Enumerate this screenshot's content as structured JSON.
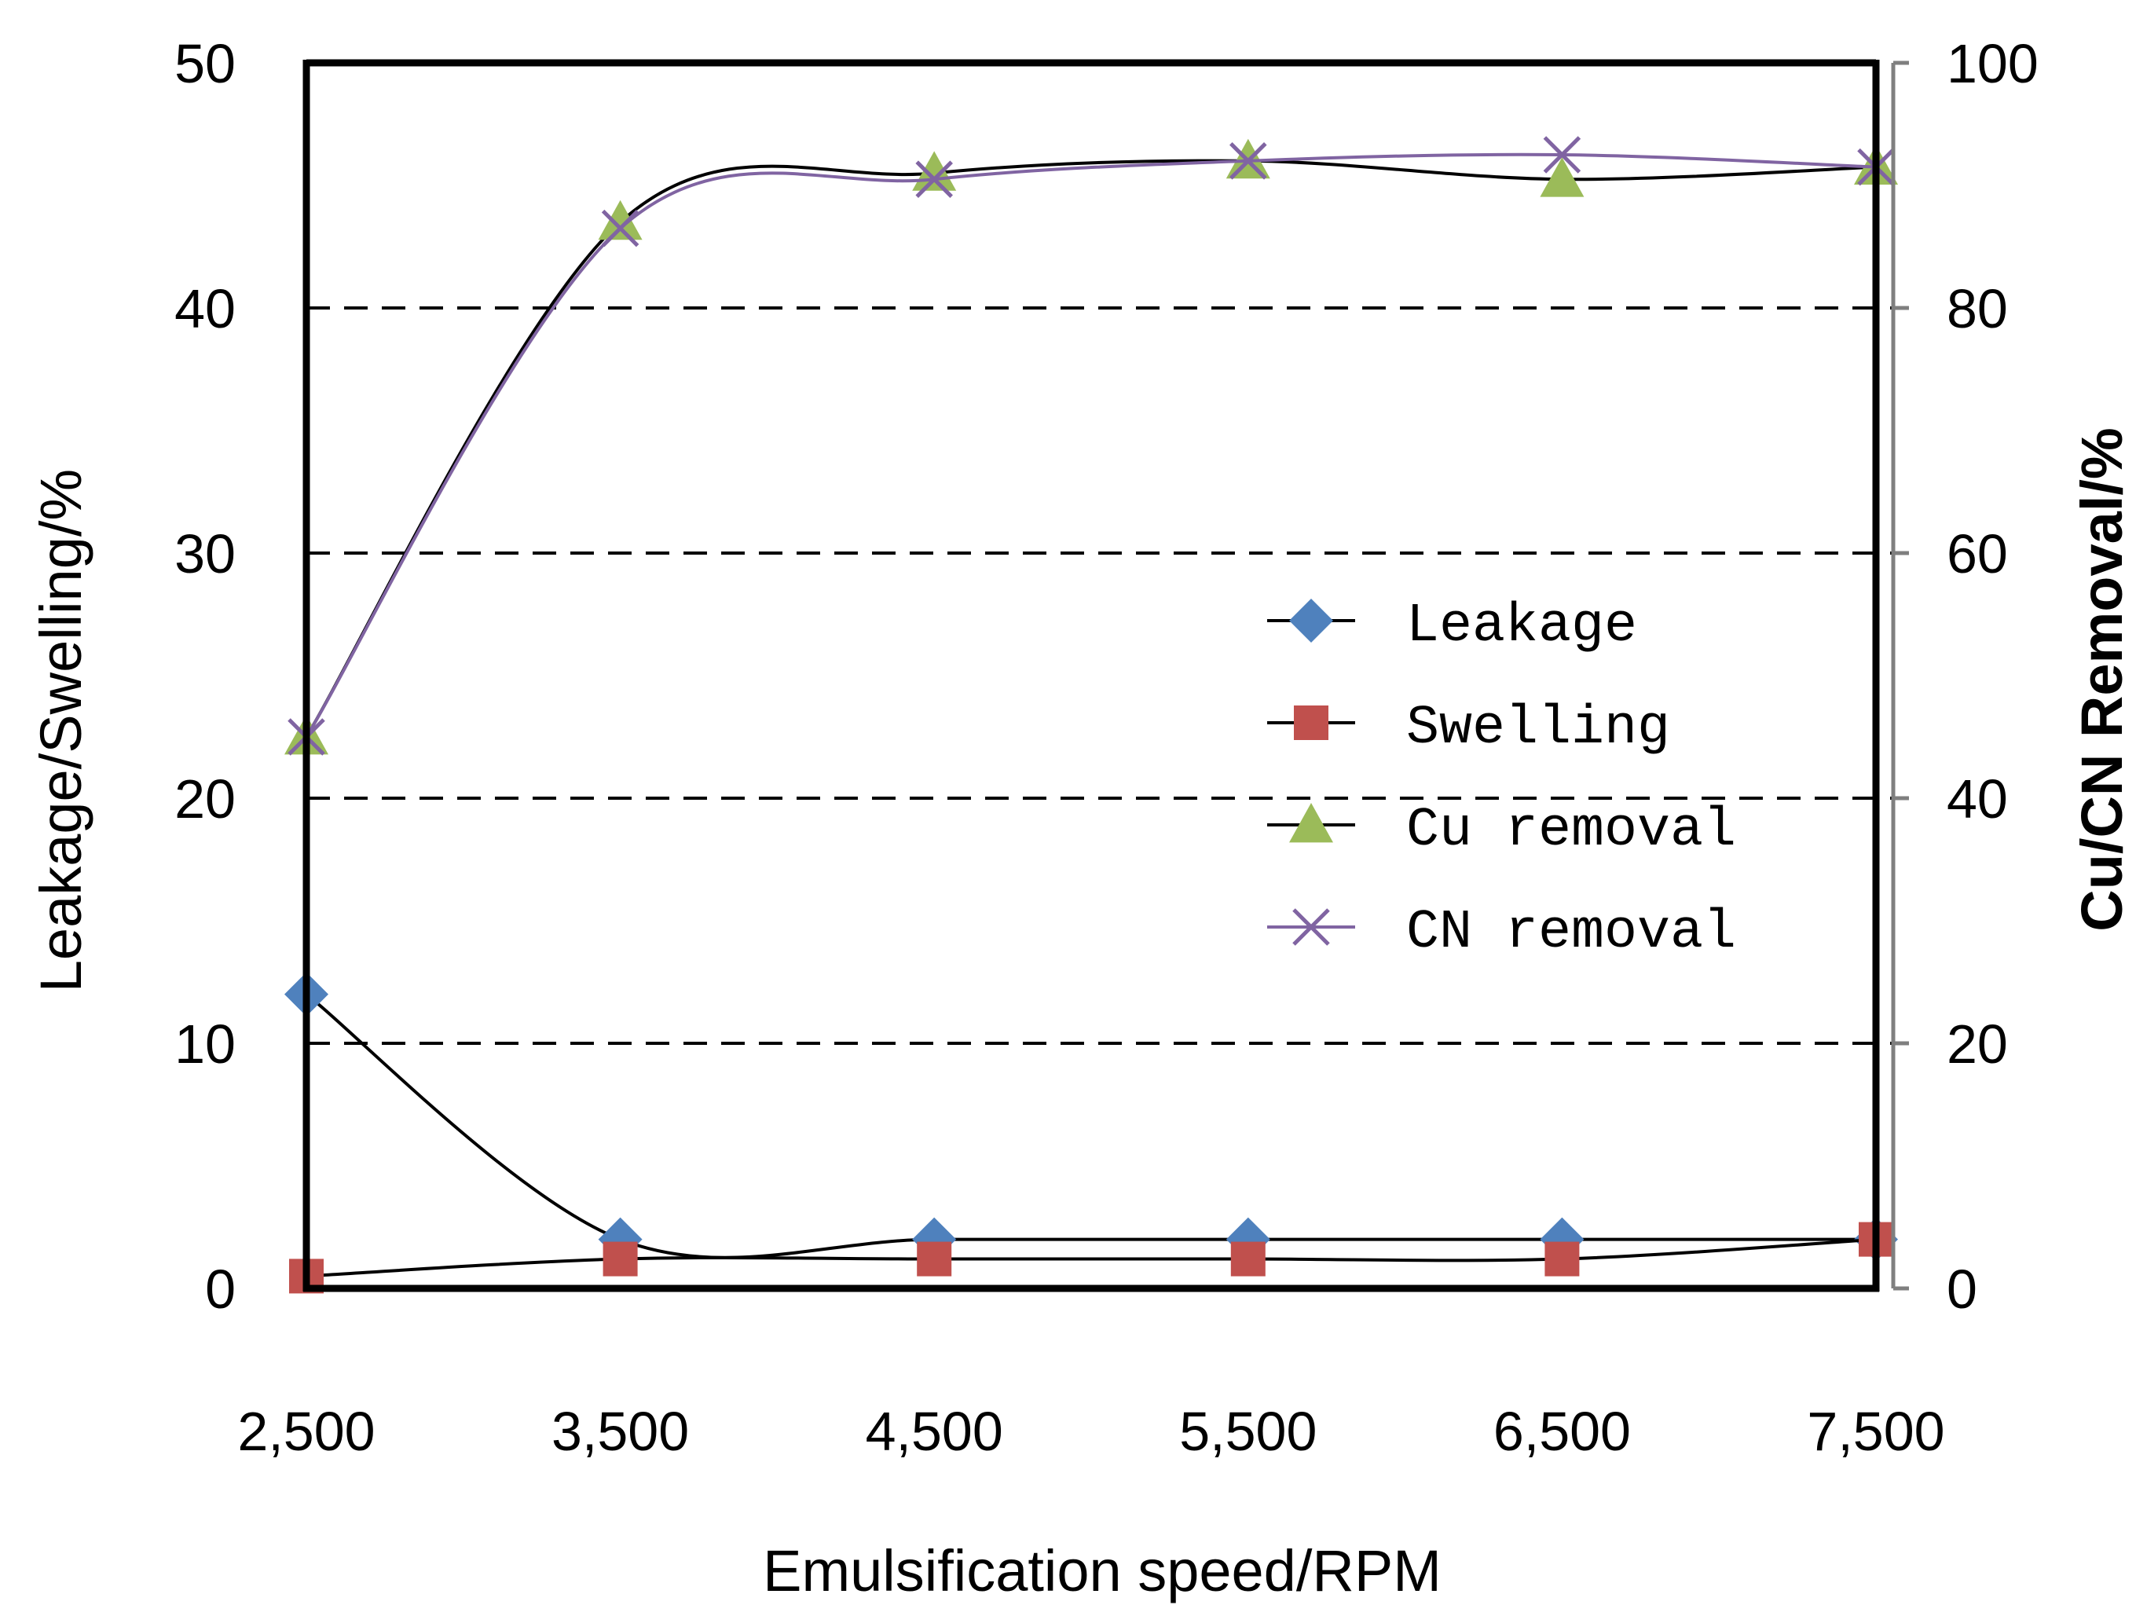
{
  "chart_data": {
    "type": "line",
    "title": "",
    "xlabel": "Emulsification speed/RPM",
    "ylabel_left": "Leakage/Swelling/%",
    "ylabel_right": "Cu/CN Removal/%",
    "categories": [
      "2,500",
      "3,500",
      "4,500",
      "5,500",
      "6,500",
      "7,500"
    ],
    "y_left_range": [
      0,
      50
    ],
    "y_left_ticks": [
      "0",
      "10",
      "20",
      "30",
      "40",
      "50"
    ],
    "y_right_range": [
      0,
      100
    ],
    "y_right_ticks": [
      "0",
      "20",
      "40",
      "60",
      "80",
      "100"
    ],
    "grid": "horizontal dashed",
    "legend_position": "right-center",
    "smoothed": true,
    "series": [
      {
        "name": "Leakage",
        "axis": "left",
        "marker": "diamond",
        "marker_color": "#4f81bd",
        "line_color": "#000000",
        "values": [
          12,
          2,
          2,
          2,
          2,
          2
        ]
      },
      {
        "name": "Swelling",
        "axis": "left",
        "marker": "square",
        "marker_color": "#c0504d",
        "line_color": "#000000",
        "values": [
          0.5,
          1.2,
          1.2,
          1.2,
          1.2,
          2
        ]
      },
      {
        "name": "Cu removal",
        "axis": "right",
        "marker": "triangle",
        "marker_color": "#9bbb59",
        "line_color": "#000000",
        "values": [
          45,
          87,
          91,
          92,
          90.5,
          91.5
        ]
      },
      {
        "name": "CN removal",
        "axis": "right",
        "marker": "x",
        "marker_color": "#8064a2",
        "line_color": "#8064a2",
        "values": [
          45,
          86.5,
          90.5,
          92,
          92.5,
          91.5
        ]
      }
    ]
  }
}
